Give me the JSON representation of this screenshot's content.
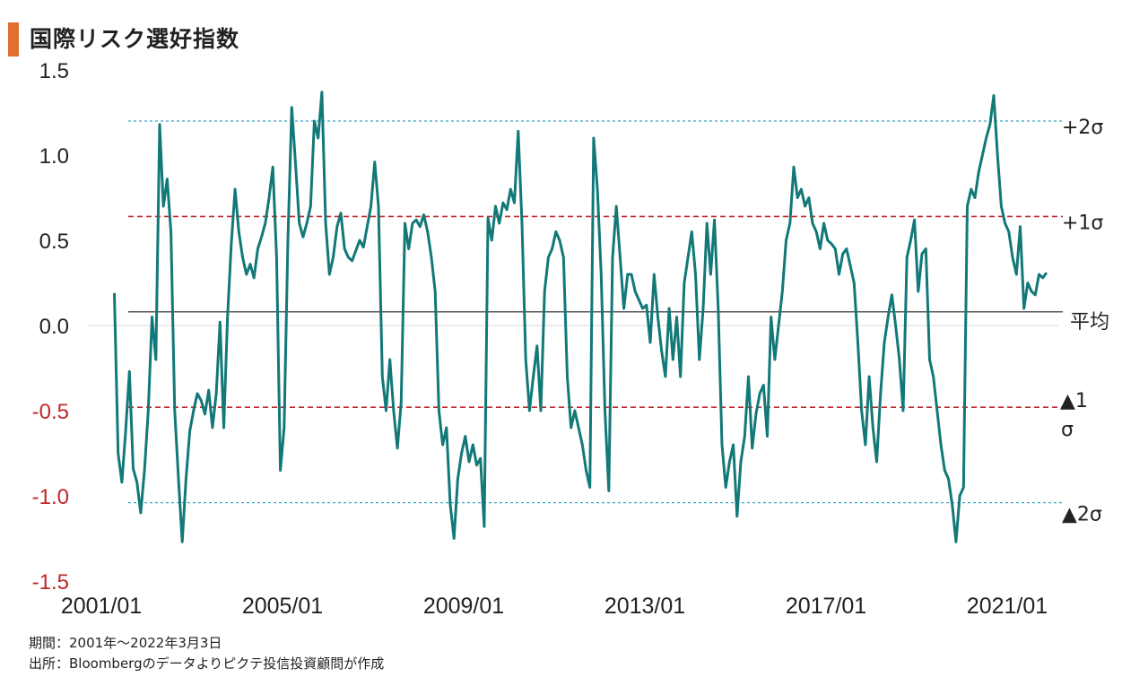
{
  "title": "国際リスク選好指数",
  "notes": {
    "period": "期間：2001年～2022年3月3日",
    "source": "出所：Bloombergのデータよりピクテ投信投資顧問が作成"
  },
  "colors": {
    "line": "#127878",
    "title_accent": "#E07030",
    "sigma1": "#C0282A",
    "sigma2": "#35A8C8",
    "mean": "#555555",
    "negative_tick": "#C0282A"
  },
  "chart_data": {
    "type": "line",
    "title": "国際リスク選好指数",
    "ylim": [
      -1.5,
      1.5
    ],
    "yticks": [
      1.5,
      1.0,
      0.5,
      0.0,
      -0.5,
      -1.0,
      -1.5
    ],
    "ytick_labels": [
      "1.5",
      "1.0",
      "0.5",
      "0.0",
      "-0.5",
      "-1.0",
      "-1.5"
    ],
    "xticks": [
      "2001/01",
      "2005/01",
      "2009/01",
      "2013/01",
      "2017/01",
      "2021/01"
    ],
    "reference_lines": [
      {
        "label": "+2σ",
        "value": 1.2,
        "style": "dotted"
      },
      {
        "label": "+1σ",
        "value": 0.64,
        "style": "dashed"
      },
      {
        "label": "平均",
        "value": 0.08,
        "style": "solid"
      },
      {
        "label": "▲1σ",
        "value": -0.48,
        "style": "dashed"
      },
      {
        "label": "▲2σ",
        "value": -1.04,
        "style": "dotted"
      }
    ],
    "series": [
      {
        "points": [
          [
            "2001/08",
            0.19
          ],
          [
            "2001/09",
            -0.75
          ],
          [
            "2001/10",
            -0.92
          ],
          [
            "2001/11",
            -0.62
          ],
          [
            "2001/12",
            -0.27
          ],
          [
            "2002/01",
            -0.84
          ],
          [
            "2002/02",
            -0.92
          ],
          [
            "2002/03",
            -1.1
          ],
          [
            "2002/04",
            -0.85
          ],
          [
            "2002/05",
            -0.5
          ],
          [
            "2002/06",
            0.05
          ],
          [
            "2002/07",
            -0.2
          ],
          [
            "2002/08",
            1.18
          ],
          [
            "2002/09",
            0.7
          ],
          [
            "2002/10",
            0.86
          ],
          [
            "2002/11",
            0.55
          ],
          [
            "2002/12",
            -0.5
          ],
          [
            "2003/01",
            -0.9
          ],
          [
            "2003/02",
            -1.27
          ],
          [
            "2003/03",
            -0.9
          ],
          [
            "2003/04",
            -0.62
          ],
          [
            "2003/05",
            -0.5
          ],
          [
            "2003/06",
            -0.4
          ],
          [
            "2003/07",
            -0.44
          ],
          [
            "2003/08",
            -0.52
          ],
          [
            "2003/09",
            -0.38
          ],
          [
            "2003/10",
            -0.6
          ],
          [
            "2003/11",
            -0.4
          ],
          [
            "2003/12",
            0.02
          ],
          [
            "2004/01",
            -0.6
          ],
          [
            "2004/02",
            0.05
          ],
          [
            "2004/03",
            0.48
          ],
          [
            "2004/04",
            0.8
          ],
          [
            "2004/05",
            0.55
          ],
          [
            "2004/06",
            0.4
          ],
          [
            "2004/07",
            0.3
          ],
          [
            "2004/08",
            0.36
          ],
          [
            "2004/09",
            0.28
          ],
          [
            "2004/10",
            0.45
          ],
          [
            "2004/11",
            0.52
          ],
          [
            "2004/12",
            0.6
          ],
          [
            "2005/01",
            0.75
          ],
          [
            "2005/02",
            0.93
          ],
          [
            "2005/03",
            0.4
          ],
          [
            "2005/04",
            -0.85
          ],
          [
            "2005/05",
            -0.6
          ],
          [
            "2005/06",
            0.5
          ],
          [
            "2005/07",
            1.28
          ],
          [
            "2005/08",
            0.95
          ],
          [
            "2005/09",
            0.6
          ],
          [
            "2005/10",
            0.52
          ],
          [
            "2005/11",
            0.6
          ],
          [
            "2005/12",
            0.7
          ],
          [
            "2006/01",
            1.2
          ],
          [
            "2006/02",
            1.1
          ],
          [
            "2006/03",
            1.37
          ],
          [
            "2006/04",
            0.6
          ],
          [
            "2006/05",
            0.3
          ],
          [
            "2006/06",
            0.4
          ],
          [
            "2006/07",
            0.58
          ],
          [
            "2006/08",
            0.66
          ],
          [
            "2006/09",
            0.45
          ],
          [
            "2006/10",
            0.4
          ],
          [
            "2006/11",
            0.38
          ],
          [
            "2006/12",
            0.44
          ],
          [
            "2007/01",
            0.5
          ],
          [
            "2007/02",
            0.46
          ],
          [
            "2007/03",
            0.58
          ],
          [
            "2007/04",
            0.7
          ],
          [
            "2007/05",
            0.96
          ],
          [
            "2007/06",
            0.7
          ],
          [
            "2007/07",
            -0.3
          ],
          [
            "2007/08",
            -0.5
          ],
          [
            "2007/09",
            -0.2
          ],
          [
            "2007/10",
            -0.5
          ],
          [
            "2007/11",
            -0.72
          ],
          [
            "2007/12",
            -0.45
          ],
          [
            "2008/01",
            0.6
          ],
          [
            "2008/02",
            0.45
          ],
          [
            "2008/03",
            0.6
          ],
          [
            "2008/04",
            0.62
          ],
          [
            "2008/05",
            0.58
          ],
          [
            "2008/06",
            0.65
          ],
          [
            "2008/07",
            0.55
          ],
          [
            "2008/08",
            0.4
          ],
          [
            "2008/09",
            0.2
          ],
          [
            "2008/10",
            -0.5
          ],
          [
            "2008/11",
            -0.7
          ],
          [
            "2008/12",
            -0.6
          ],
          [
            "2009/01",
            -1.05
          ],
          [
            "2009/02",
            -1.25
          ],
          [
            "2009/03",
            -0.9
          ],
          [
            "2009/04",
            -0.75
          ],
          [
            "2009/05",
            -0.65
          ],
          [
            "2009/06",
            -0.8
          ],
          [
            "2009/07",
            -0.7
          ],
          [
            "2009/08",
            -0.82
          ],
          [
            "2009/09",
            -0.78
          ],
          [
            "2009/10",
            -1.18
          ],
          [
            "2009/11",
            0.63
          ],
          [
            "2009/12",
            0.5
          ],
          [
            "2010/01",
            0.7
          ],
          [
            "2010/02",
            0.6
          ],
          [
            "2010/03",
            0.72
          ],
          [
            "2010/04",
            0.68
          ],
          [
            "2010/05",
            0.8
          ],
          [
            "2010/06",
            0.72
          ],
          [
            "2010/07",
            1.14
          ],
          [
            "2010/08",
            0.6
          ],
          [
            "2010/09",
            -0.2
          ],
          [
            "2010/10",
            -0.5
          ],
          [
            "2010/11",
            -0.3
          ],
          [
            "2010/12",
            -0.12
          ],
          [
            "2011/01",
            -0.5
          ],
          [
            "2011/02",
            0.2
          ],
          [
            "2011/03",
            0.4
          ],
          [
            "2011/04",
            0.45
          ],
          [
            "2011/05",
            0.55
          ],
          [
            "2011/06",
            0.5
          ],
          [
            "2011/07",
            0.4
          ],
          [
            "2011/08",
            -0.3
          ],
          [
            "2011/09",
            -0.6
          ],
          [
            "2011/10",
            -0.5
          ],
          [
            "2011/11",
            -0.6
          ],
          [
            "2011/12",
            -0.7
          ],
          [
            "2012/01",
            -0.85
          ],
          [
            "2012/02",
            -0.95
          ],
          [
            "2012/03",
            1.1
          ],
          [
            "2012/04",
            0.8
          ],
          [
            "2012/05",
            0.3
          ],
          [
            "2012/06",
            -0.5
          ],
          [
            "2012/07",
            -0.97
          ],
          [
            "2012/08",
            0.4
          ],
          [
            "2012/09",
            0.7
          ],
          [
            "2012/10",
            0.4
          ],
          [
            "2012/11",
            0.1
          ],
          [
            "2012/12",
            0.3
          ],
          [
            "2013/01",
            0.3
          ],
          [
            "2013/02",
            0.2
          ],
          [
            "2013/03",
            0.15
          ],
          [
            "2013/04",
            0.1
          ],
          [
            "2013/05",
            0.12
          ],
          [
            "2013/06",
            -0.1
          ],
          [
            "2013/07",
            0.3
          ],
          [
            "2013/08",
            0.05
          ],
          [
            "2013/09",
            -0.15
          ],
          [
            "2013/10",
            -0.3
          ],
          [
            "2013/11",
            0.1
          ],
          [
            "2013/12",
            -0.2
          ],
          [
            "2014/01",
            0.05
          ],
          [
            "2014/02",
            -0.3
          ],
          [
            "2014/03",
            0.25
          ],
          [
            "2014/04",
            0.4
          ],
          [
            "2014/05",
            0.55
          ],
          [
            "2014/06",
            0.3
          ],
          [
            "2014/07",
            -0.2
          ],
          [
            "2014/08",
            0.1
          ],
          [
            "2014/09",
            0.6
          ],
          [
            "2014/10",
            0.3
          ],
          [
            "2014/11",
            0.62
          ],
          [
            "2014/12",
            0.1
          ],
          [
            "2015/01",
            -0.7
          ],
          [
            "2015/02",
            -0.95
          ],
          [
            "2015/03",
            -0.8
          ],
          [
            "2015/04",
            -0.7
          ],
          [
            "2015/05",
            -1.12
          ],
          [
            "2015/06",
            -0.8
          ],
          [
            "2015/07",
            -0.65
          ],
          [
            "2015/08",
            -0.3
          ],
          [
            "2015/09",
            -0.72
          ],
          [
            "2015/10",
            -0.52
          ],
          [
            "2015/11",
            -0.4
          ],
          [
            "2015/12",
            -0.35
          ],
          [
            "2016/01",
            -0.65
          ],
          [
            "2016/02",
            0.05
          ],
          [
            "2016/03",
            -0.2
          ],
          [
            "2016/04",
            0.0
          ],
          [
            "2016/05",
            0.2
          ],
          [
            "2016/06",
            0.5
          ],
          [
            "2016/07",
            0.6
          ],
          [
            "2016/08",
            0.93
          ],
          [
            "2016/09",
            0.75
          ],
          [
            "2016/10",
            0.8
          ],
          [
            "2016/11",
            0.7
          ],
          [
            "2016/12",
            0.75
          ],
          [
            "2017/01",
            0.6
          ],
          [
            "2017/02",
            0.55
          ],
          [
            "2017/03",
            0.45
          ],
          [
            "2017/04",
            0.6
          ],
          [
            "2017/05",
            0.5
          ],
          [
            "2017/06",
            0.48
          ],
          [
            "2017/07",
            0.45
          ],
          [
            "2017/08",
            0.3
          ],
          [
            "2017/09",
            0.42
          ],
          [
            "2017/10",
            0.45
          ],
          [
            "2017/11",
            0.35
          ],
          [
            "2017/12",
            0.25
          ],
          [
            "2018/01",
            -0.1
          ],
          [
            "2018/02",
            -0.5
          ],
          [
            "2018/03",
            -0.7
          ],
          [
            "2018/04",
            -0.3
          ],
          [
            "2018/05",
            -0.6
          ],
          [
            "2018/06",
            -0.8
          ],
          [
            "2018/07",
            -0.4
          ],
          [
            "2018/08",
            -0.1
          ],
          [
            "2018/09",
            0.05
          ],
          [
            "2018/10",
            0.18
          ],
          [
            "2018/11",
            0.0
          ],
          [
            "2018/12",
            -0.2
          ],
          [
            "2019/01",
            -0.5
          ],
          [
            "2019/02",
            0.4
          ],
          [
            "2019/03",
            0.5
          ],
          [
            "2019/04",
            0.62
          ],
          [
            "2019/05",
            0.2
          ],
          [
            "2019/06",
            0.42
          ],
          [
            "2019/07",
            0.45
          ],
          [
            "2019/08",
            -0.2
          ],
          [
            "2019/09",
            -0.3
          ],
          [
            "2019/10",
            -0.5
          ],
          [
            "2019/11",
            -0.7
          ],
          [
            "2019/12",
            -0.85
          ],
          [
            "2020/01",
            -0.9
          ],
          [
            "2020/02",
            -1.05
          ],
          [
            "2020/03",
            -1.27
          ],
          [
            "2020/04",
            -1.0
          ],
          [
            "2020/05",
            -0.95
          ],
          [
            "2020/06",
            0.7
          ],
          [
            "2020/07",
            0.8
          ],
          [
            "2020/08",
            0.75
          ],
          [
            "2020/09",
            0.9
          ],
          [
            "2020/10",
            1.0
          ],
          [
            "2020/11",
            1.1
          ],
          [
            "2020/12",
            1.18
          ],
          [
            "2021/01",
            1.35
          ],
          [
            "2021/02",
            1.0
          ],
          [
            "2021/03",
            0.7
          ],
          [
            "2021/04",
            0.6
          ],
          [
            "2021/05",
            0.55
          ],
          [
            "2021/06",
            0.4
          ],
          [
            "2021/07",
            0.3
          ],
          [
            "2021/08",
            0.58
          ],
          [
            "2021/09",
            0.1
          ],
          [
            "2021/10",
            0.25
          ],
          [
            "2021/11",
            0.2
          ],
          [
            "2021/12",
            0.18
          ],
          [
            "2022/01",
            0.3
          ],
          [
            "2022/02",
            0.28
          ],
          [
            "2022/03",
            0.31
          ]
        ]
      }
    ]
  }
}
